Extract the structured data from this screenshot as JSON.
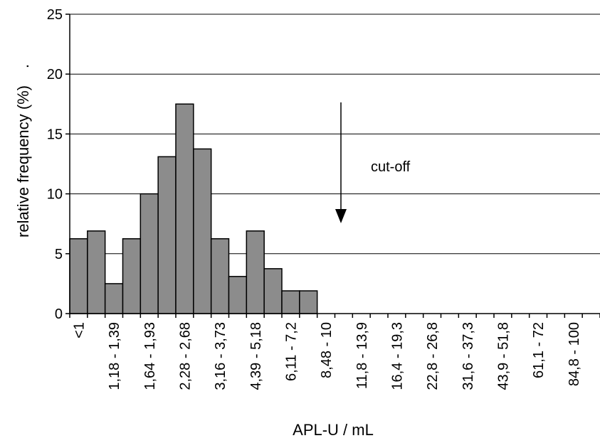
{
  "chart_data": {
    "type": "bar",
    "title": "",
    "xlabel": "APL-U / mL",
    "ylabel": "relative frequency (%)",
    "ylabel_suffix": ".",
    "ylim": [
      0,
      25
    ],
    "yticks": [
      0,
      5,
      10,
      15,
      20,
      25
    ],
    "grid": "horizontal",
    "bar_color": "#8c8c8c",
    "bin_labels": [
      "<1",
      "1,18 - 1,39",
      "1,64 - 1,93",
      "2,28 - 2,68",
      "3,16 - 3,73",
      "4,39 - 5,18",
      "6,11 - 7,2",
      "8,48 - 10",
      "11,8 - 13,9",
      "16,4 - 19,3",
      "22,8 - 26,8",
      "31,6 - 37,3",
      "43,9 - 51,8",
      "61,1 - 72",
      "84,8 - 100"
    ],
    "values": [
      6.25,
      6.9,
      2.5,
      6.25,
      10.0,
      13.1,
      17.5,
      13.75,
      6.25,
      3.1,
      6.9,
      3.75,
      1.9,
      1.9,
      0,
      0,
      0,
      0,
      0,
      0,
      0,
      0,
      0,
      0,
      0,
      0,
      0,
      0,
      0,
      0
    ],
    "annotations": [
      {
        "text": "cut-off",
        "arrow": "down"
      }
    ]
  }
}
